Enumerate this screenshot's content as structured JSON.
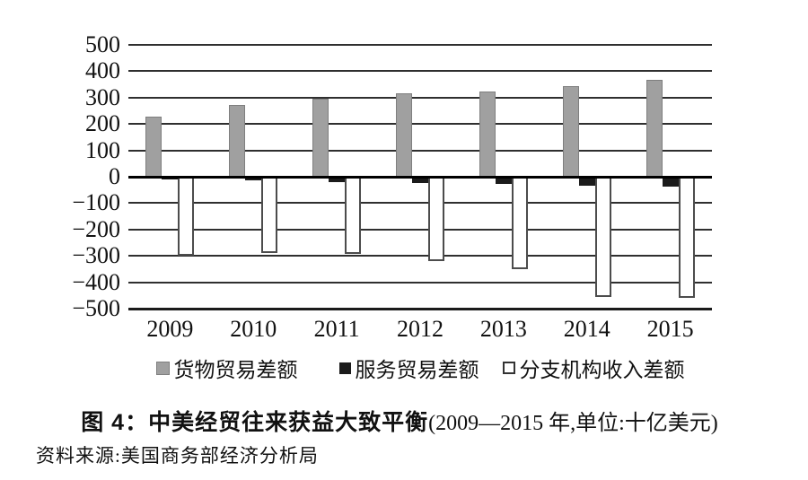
{
  "figure": {
    "caption": {
      "label": "图 4：",
      "title": "中美经贸往来获益大致平衡",
      "subtitle": "(2009—2015 年,单位:十亿美元)"
    },
    "source": "资料来源:美国商务部经济分析局"
  },
  "chart_data": {
    "type": "bar",
    "title": "图 4：中美经贸往来获益大致平衡",
    "subtitle": "(2009—2015 年,单位:十亿美元)",
    "unit": "十亿美元",
    "categories": [
      "2009",
      "2010",
      "2011",
      "2012",
      "2013",
      "2014",
      "2015"
    ],
    "series": [
      {
        "name": "货物贸易差额",
        "color": "#a0a0a0",
        "values": [
          227,
          273,
          295,
          315,
          324,
          343,
          367
        ]
      },
      {
        "name": "服务贸易差额",
        "color": "#1b1b1b",
        "values": [
          -9,
          -15,
          -20,
          -25,
          -28,
          -33,
          -38
        ]
      },
      {
        "name": "分支机构收入差额",
        "color": "#ffffff",
        "values": [
          -300,
          -288,
          -293,
          -320,
          -350,
          -455,
          -460
        ]
      }
    ],
    "ylim": [
      -500,
      500
    ],
    "yticks": [
      500,
      400,
      300,
      200,
      100,
      0,
      -100,
      -200,
      -300,
      -400,
      -500
    ],
    "ytick_labels": [
      "500",
      "400",
      "300",
      "200",
      "100",
      "0",
      "−100",
      "−200",
      "−300",
      "−400",
      "−500"
    ],
    "grid": true,
    "legend_position": "bottom",
    "colors": {
      "grid": "#2f2f2f",
      "zero_axis": "#000000",
      "white_bar_border": "#4c4c4c",
      "background": "#ffffff"
    }
  }
}
